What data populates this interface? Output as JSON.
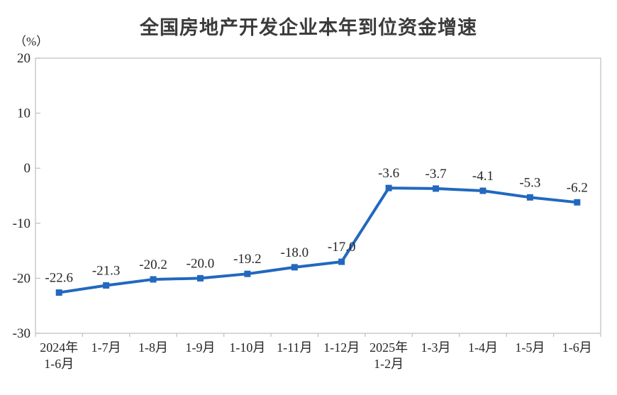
{
  "chart_data": {
    "type": "line",
    "title": "全国房地产开发企业本年到位资金增速",
    "unit_label": "（%）",
    "categories": [
      "2024年\n1-6月",
      "1-7月",
      "1-8月",
      "1-9月",
      "1-10月",
      "1-11月",
      "1-12月",
      "2025年\n1-2月",
      "1-3月",
      "1-4月",
      "1-5月",
      "1-6月"
    ],
    "values": [
      -22.6,
      -21.3,
      -20.2,
      -20.0,
      -19.2,
      -18.0,
      -17.0,
      -3.6,
      -3.7,
      -4.1,
      -5.3,
      -6.2
    ],
    "data_labels": [
      "-22.6",
      "-21.3",
      "-20.2",
      "-20.0",
      "-19.2",
      "-18.0",
      "-17.0",
      "-3.6",
      "-3.7",
      "-4.1",
      "-5.3",
      "-6.2"
    ],
    "yticks": [
      20,
      10,
      0,
      -10,
      -20,
      -30
    ],
    "ylim": [
      -30,
      20
    ],
    "grid": false,
    "legend": "none",
    "line_color": "#2268BE",
    "marker_color": "#2268BE",
    "marker_shape": "square",
    "axis_color": "#c2c2c2",
    "text_color": "#262626",
    "background_color": "#ffffff"
  }
}
